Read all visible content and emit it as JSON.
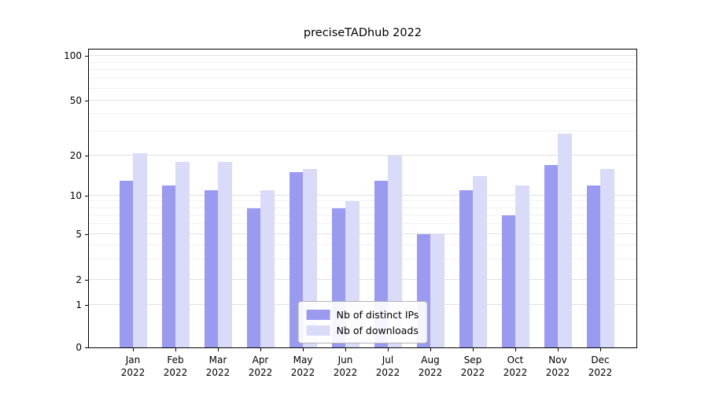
{
  "title": "preciseTADhub 2022",
  "chart_data": {
    "type": "bar",
    "title": "preciseTADhub 2022",
    "categories": [
      "Jan",
      "Feb",
      "Mar",
      "Apr",
      "May",
      "Jun",
      "Jul",
      "Aug",
      "Sep",
      "Oct",
      "Nov",
      "Dec"
    ],
    "year": "2022",
    "series": [
      {
        "name": "Nb of distinct IPs",
        "color": "#9a9af0",
        "values": [
          13,
          12,
          11,
          8,
          15,
          8,
          13,
          5,
          11,
          7,
          17,
          12
        ]
      },
      {
        "name": "Nb of downloads",
        "color": "#dadaf9",
        "values": [
          21,
          18,
          18,
          11,
          16,
          9,
          20,
          5,
          14,
          12,
          29,
          16
        ]
      }
    ],
    "yticks": [
      0,
      1,
      2,
      5,
      10,
      20,
      50,
      100
    ],
    "ylim": [
      0,
      100
    ],
    "yscale": "symlog",
    "grid": true,
    "legend_position": "lower center"
  },
  "colors": {
    "background": "#ffffff",
    "axis": "#000000",
    "grid_major": "#e2e2e2",
    "grid_minor": "#f1f1f1",
    "legend_border": "#b3b3b3"
  }
}
